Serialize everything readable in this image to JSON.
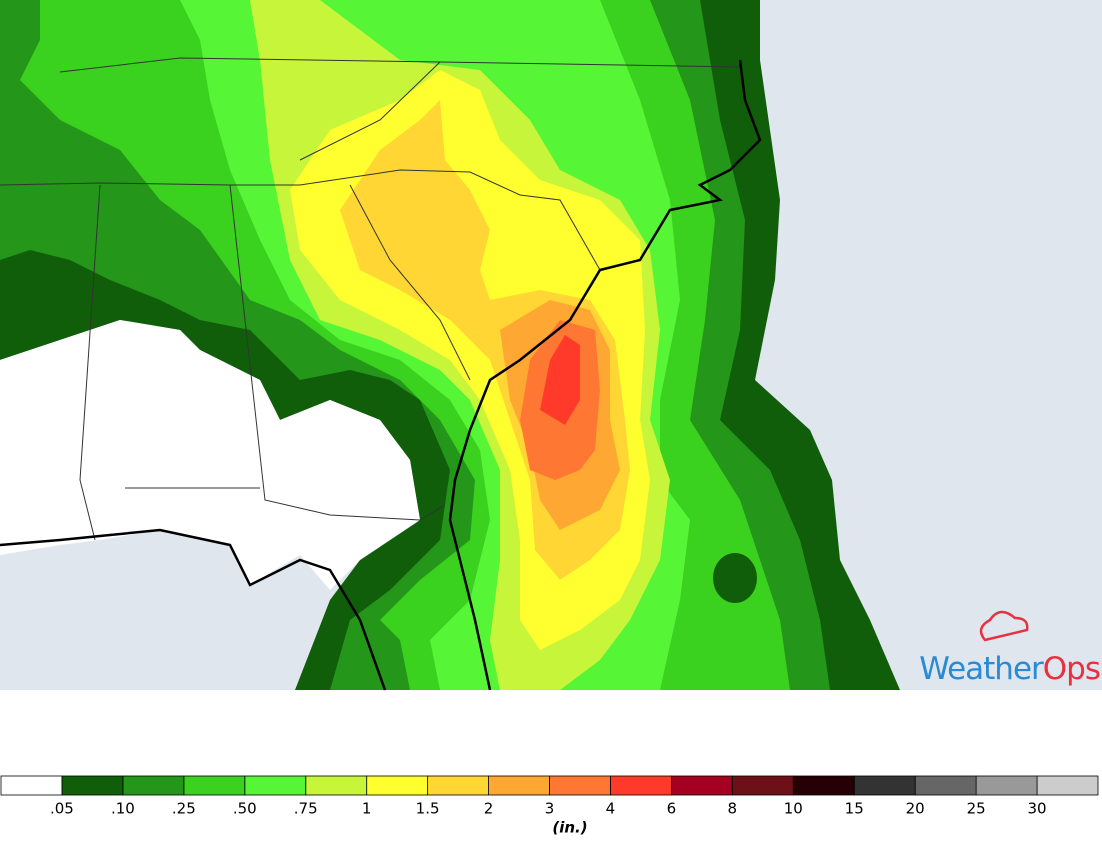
{
  "logo": {
    "part1": "Weather",
    "part2": "Ops"
  },
  "legend": {
    "colors": [
      "#ffffff",
      "#115e0a",
      "#24961a",
      "#3bd11f",
      "#56f535",
      "#c7f53a",
      "#ffff30",
      "#ffd633",
      "#ffa733",
      "#ff7833",
      "#ff3a2a",
      "#a50021",
      "#6e1018",
      "#250005",
      "#333333",
      "#666666",
      "#999999",
      "#cccccc"
    ],
    "labels": [
      ".05",
      ".10",
      ".25",
      ".50",
      ".75",
      "1",
      "1.5",
      "2",
      "3",
      "4",
      "6",
      "8",
      "10",
      "15",
      "20",
      "25",
      "30"
    ],
    "unit": "(in.)"
  }
}
